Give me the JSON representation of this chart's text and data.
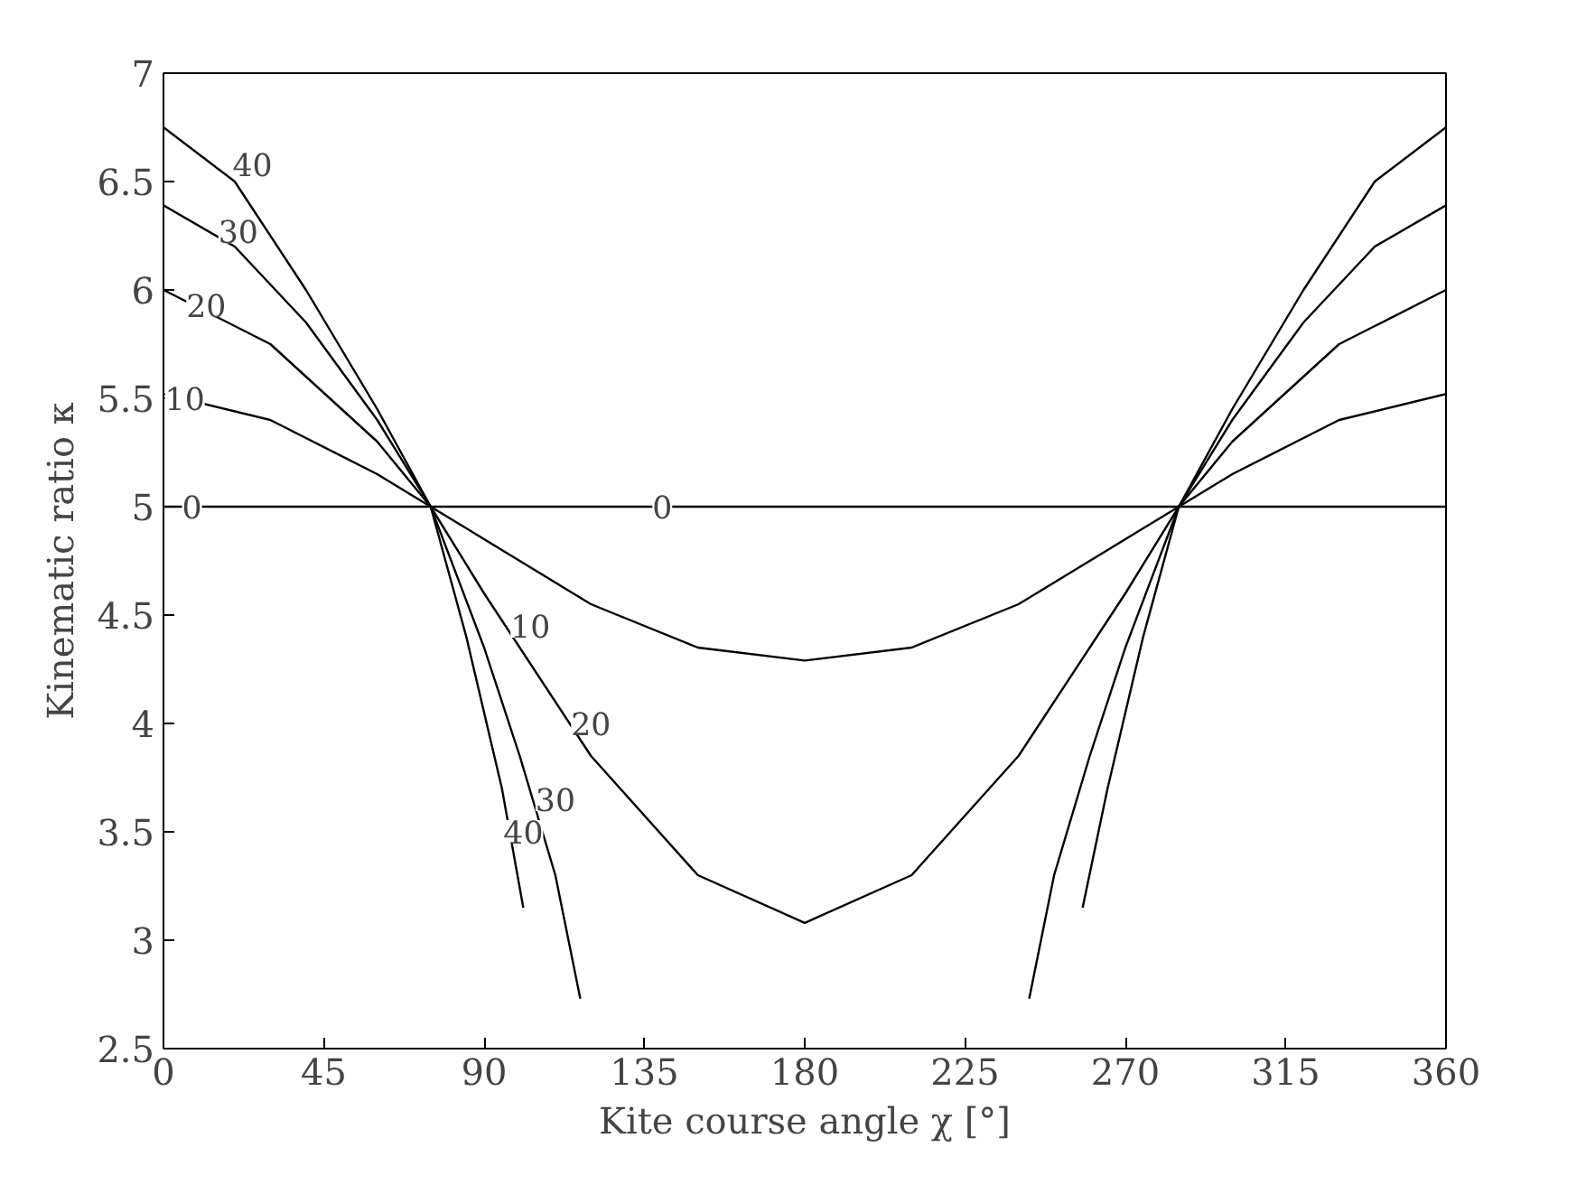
{
  "chart_data": {
    "type": "line",
    "xlabel": "Kite course angle χ [°]",
    "ylabel": "Kinematic ratio κ",
    "xlim": [
      0,
      360
    ],
    "xticks": [
      0,
      45,
      90,
      135,
      180,
      225,
      270,
      315,
      360
    ],
    "ylim": [
      2.5,
      7
    ],
    "yticks": [
      2.5,
      3,
      3.5,
      4,
      4.5,
      5,
      5.5,
      6,
      6.5,
      7
    ],
    "marker": "none",
    "line_style": "solid",
    "series": [
      {
        "color": "#000000",
        "x": [
          0,
          360
        ],
        "values": [
          5,
          5
        ]
      },
      {
        "color": "#000000",
        "x": [
          0,
          30,
          60,
          75,
          90,
          120,
          150,
          180,
          210,
          240,
          270,
          285,
          300,
          330,
          360
        ],
        "values": [
          5.52,
          5.4,
          5.15,
          5.0,
          4.85,
          4.55,
          4.35,
          4.29,
          4.35,
          4.55,
          4.85,
          5.0,
          5.15,
          5.4,
          5.52
        ]
      },
      {
        "color": "#000000",
        "x": [
          0,
          30,
          60,
          75,
          90,
          120,
          150,
          180,
          210,
          240,
          270,
          285,
          300,
          330,
          360
        ],
        "values": [
          6.0,
          5.75,
          5.3,
          5.0,
          4.6,
          3.85,
          3.3,
          3.08,
          3.3,
          3.85,
          4.6,
          5.0,
          5.3,
          5.75,
          6.0
        ]
      },
      {
        "color": "#000000",
        "x": [
          0,
          20,
          40,
          60,
          75,
          90,
          100,
          110,
          117,
          180,
          243,
          250,
          260,
          270,
          285,
          300,
          320,
          340,
          360
        ],
        "values": [
          6.39,
          6.2,
          5.85,
          5.4,
          5.0,
          4.35,
          3.85,
          3.3,
          2.73,
          null,
          2.73,
          3.3,
          3.85,
          4.35,
          5.0,
          5.4,
          5.85,
          6.2,
          6.39
        ]
      },
      {
        "color": "#000000",
        "x": [
          0,
          20,
          40,
          60,
          75,
          85,
          95,
          101,
          180,
          258,
          265,
          275,
          285,
          300,
          320,
          340,
          360
        ],
        "values": [
          6.75,
          6.5,
          6.0,
          5.45,
          5.0,
          4.4,
          3.7,
          3.15,
          null,
          3.15,
          3.7,
          4.4,
          5.0,
          5.45,
          6.0,
          6.5,
          6.75
        ]
      }
    ],
    "annotations": [
      {
        "text": "0",
        "x": 8,
        "y": 5
      },
      {
        "text": "0",
        "x": 140,
        "y": 5
      },
      {
        "text": "10",
        "x": 6,
        "y": 5.5
      },
      {
        "text": "10",
        "x": 103,
        "y": 4.45
      },
      {
        "text": "20",
        "x": 12,
        "y": 5.93
      },
      {
        "text": "20",
        "x": 120,
        "y": 4.0
      },
      {
        "text": "30",
        "x": 21,
        "y": 6.27
      },
      {
        "text": "30",
        "x": 110,
        "y": 3.65
      },
      {
        "text": "40",
        "x": 25,
        "y": 6.58
      },
      {
        "text": "40",
        "x": 101,
        "y": 3.5
      }
    ]
  }
}
